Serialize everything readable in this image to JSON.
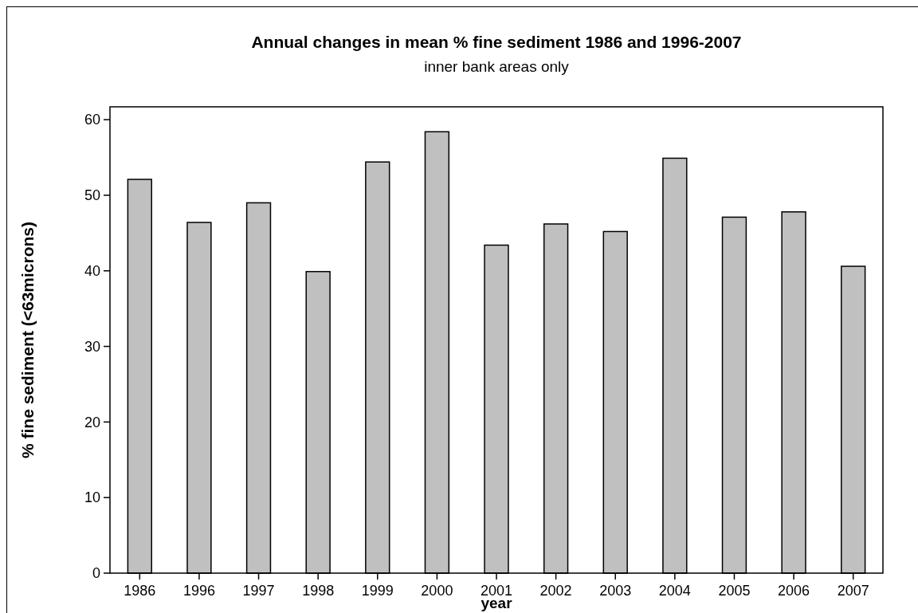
{
  "chart_data": {
    "type": "bar",
    "title": "Annual changes in mean % fine sediment 1986 and 1996-2007",
    "subtitle": "inner bank areas only",
    "xlabel": "year",
    "ylabel": "% fine sediment (<63microns)",
    "categories": [
      "1986",
      "1996",
      "1997",
      "1998",
      "1999",
      "2000",
      "2001",
      "2002",
      "2003",
      "2004",
      "2005",
      "2006",
      "2007"
    ],
    "values": [
      52.1,
      46.4,
      49.0,
      39.9,
      54.4,
      58.4,
      43.4,
      46.2,
      45.2,
      54.9,
      47.1,
      47.8,
      40.6
    ],
    "color": "#c0c0c0",
    "ylim": [
      0,
      61.7
    ],
    "yticks": [
      0,
      10,
      20,
      30,
      40,
      50,
      60
    ],
    "grid": false
  }
}
